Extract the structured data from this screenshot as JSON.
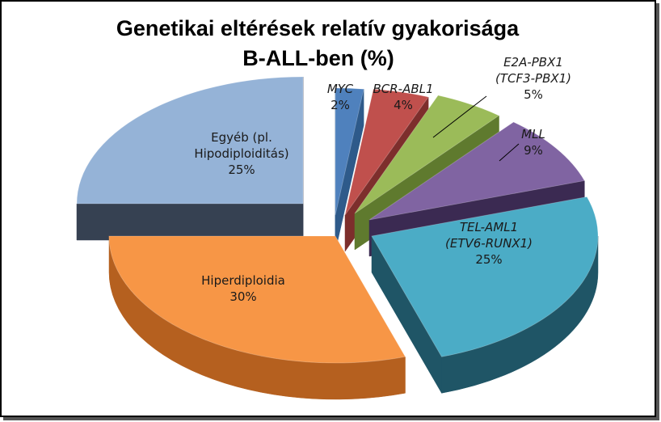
{
  "chart_data": {
    "type": "pie",
    "title_line1": "Genetikai eltérések relatív gyakorisága",
    "title_line2": "B-ALL-ben (%)",
    "slices": [
      {
        "id": "myc",
        "lines": [
          "MYC",
          "2%"
        ],
        "italic": [
          true,
          false
        ],
        "value": 2,
        "color": "#4f81bd",
        "side": "#2e5a8a"
      },
      {
        "id": "bcr-abl1",
        "lines": [
          "BCR-ABL1",
          "4%"
        ],
        "italic": [
          true,
          false
        ],
        "value": 4,
        "color": "#c0504d",
        "side": "#7d2e2c"
      },
      {
        "id": "e2a-pbx1",
        "lines": [
          "E2A-PBX1",
          "(TCF3-PBX1)",
          "5%"
        ],
        "italic": [
          true,
          true,
          false
        ],
        "value": 5,
        "color": "#9bbb59",
        "side": "#5f7a2e"
      },
      {
        "id": "mll",
        "lines": [
          "MLL",
          "9%"
        ],
        "italic": [
          true,
          false
        ],
        "value": 9,
        "color": "#8064a2",
        "side": "#3b2a52"
      },
      {
        "id": "tel-aml1",
        "lines": [
          "TEL-AML1",
          "(ETV6-RUNX1)",
          "25%"
        ],
        "italic": [
          true,
          true,
          false
        ],
        "value": 25,
        "color": "#4bacc6",
        "side": "#1f5566"
      },
      {
        "id": "hiperdiploidia",
        "lines": [
          "Hiperdiploidia",
          "30%"
        ],
        "italic": [
          false,
          false
        ],
        "value": 30,
        "color": "#f79646",
        "side": "#b5601f"
      },
      {
        "id": "egyeb",
        "lines": [
          "Egyéb (pl.",
          "Hipodiploiditás)",
          "25%"
        ],
        "italic": [
          false,
          false,
          false
        ],
        "value": 25,
        "color": "#95b3d7",
        "side": "#364152"
      }
    ]
  }
}
